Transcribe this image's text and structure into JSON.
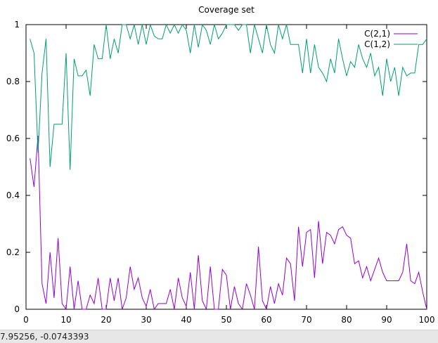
{
  "chart_data": {
    "type": "line",
    "title": "Coverage set",
    "xlabel": "",
    "ylabel": "",
    "xlim": [
      0,
      100
    ],
    "ylim": [
      0,
      1
    ],
    "xticks": [
      0,
      10,
      20,
      30,
      40,
      50,
      60,
      70,
      80,
      90,
      100
    ],
    "yticks": [
      0,
      0.2,
      0.4,
      0.6,
      0.8,
      1
    ],
    "grid": false,
    "legend_position": "top-right",
    "series": [
      {
        "name": "C(2,1)",
        "color": "#9400d3",
        "x": [
          1,
          2,
          3,
          4,
          5,
          6,
          7,
          8,
          9,
          10,
          11,
          12,
          13,
          14,
          15,
          16,
          17,
          18,
          19,
          20,
          21,
          22,
          23,
          24,
          25,
          26,
          27,
          28,
          29,
          30,
          31,
          32,
          33,
          34,
          35,
          36,
          37,
          38,
          39,
          40,
          41,
          42,
          43,
          44,
          45,
          46,
          47,
          48,
          49,
          50,
          51,
          52,
          53,
          54,
          55,
          56,
          57,
          58,
          59,
          60,
          61,
          62,
          63,
          64,
          65,
          66,
          67,
          68,
          69,
          70,
          71,
          72,
          73,
          74,
          75,
          76,
          77,
          78,
          79,
          80,
          81,
          82,
          83,
          84,
          85,
          86,
          87,
          88,
          89,
          90,
          91,
          92,
          93,
          94,
          95,
          96,
          97,
          98,
          99,
          100
        ],
        "values": [
          0.53,
          0.43,
          0.61,
          0.09,
          0.02,
          0.2,
          0.04,
          0.25,
          0.02,
          0.0,
          0.15,
          0.0,
          0.1,
          0.0,
          0.0,
          0.05,
          0.02,
          0.11,
          0.0,
          0.0,
          0.11,
          0.03,
          0.11,
          0.0,
          0.04,
          0.15,
          0.07,
          0.11,
          0.04,
          0.01,
          0.07,
          0.0,
          0.02,
          0.02,
          0.02,
          0.07,
          0.0,
          0.11,
          0.04,
          0.01,
          0.13,
          0.0,
          0.19,
          0.03,
          0.0,
          0.15,
          0.0,
          0.0,
          0.14,
          0.12,
          0.0,
          0.08,
          0.02,
          0.0,
          0.09,
          0.05,
          0.0,
          0.22,
          0.03,
          0.0,
          0.08,
          0.02,
          0.09,
          0.05,
          0.18,
          0.16,
          0.03,
          0.29,
          0.15,
          0.27,
          0.28,
          0.11,
          0.31,
          0.16,
          0.27,
          0.26,
          0.23,
          0.28,
          0.29,
          0.26,
          0.25,
          0.16,
          0.17,
          0.11,
          0.15,
          0.1,
          0.14,
          0.18,
          0.13,
          0.1,
          0.1,
          0.1,
          0.1,
          0.13,
          0.23,
          0.1,
          0.09,
          0.13,
          0.06,
          0.0
        ]
      },
      {
        "name": "C(1,2)",
        "color": "#009e73",
        "x": [
          1,
          2,
          3,
          4,
          5,
          6,
          7,
          8,
          9,
          10,
          11,
          12,
          13,
          14,
          15,
          16,
          17,
          18,
          19,
          20,
          21,
          22,
          23,
          24,
          25,
          26,
          27,
          28,
          29,
          30,
          31,
          32,
          33,
          34,
          35,
          36,
          37,
          38,
          39,
          40,
          41,
          42,
          43,
          44,
          45,
          46,
          47,
          48,
          49,
          50,
          51,
          52,
          53,
          54,
          55,
          56,
          57,
          58,
          59,
          60,
          61,
          62,
          63,
          64,
          65,
          66,
          67,
          68,
          69,
          70,
          71,
          72,
          73,
          74,
          75,
          76,
          77,
          78,
          79,
          80,
          81,
          82,
          83,
          84,
          85,
          86,
          87,
          88,
          89,
          90,
          91,
          92,
          93,
          94,
          95,
          96,
          97,
          98,
          99,
          100
        ],
        "values": [
          0.95,
          0.9,
          0.55,
          0.83,
          0.95,
          0.5,
          0.65,
          0.65,
          0.65,
          0.9,
          0.49,
          0.88,
          0.82,
          0.82,
          0.84,
          0.75,
          0.93,
          0.88,
          0.88,
          1.0,
          0.88,
          0.95,
          0.9,
          1.0,
          1.0,
          0.95,
          1.0,
          0.93,
          1.0,
          0.93,
          1.0,
          0.96,
          0.95,
          0.95,
          1.0,
          0.97,
          1.0,
          0.97,
          1.0,
          0.98,
          0.9,
          1.0,
          0.92,
          1.0,
          0.98,
          0.93,
          1.0,
          0.95,
          0.97,
          1.0,
          1.0,
          1.0,
          0.98,
          1.0,
          1.0,
          0.9,
          1.0,
          0.95,
          0.9,
          1.0,
          0.93,
          0.9,
          1.0,
          0.95,
          1.0,
          0.93,
          0.93,
          0.93,
          0.83,
          0.95,
          0.83,
          0.93,
          0.85,
          0.83,
          0.8,
          0.88,
          0.83,
          0.95,
          0.88,
          0.82,
          0.87,
          0.85,
          0.93,
          0.88,
          0.85,
          0.9,
          0.82,
          0.85,
          0.75,
          0.88,
          0.8,
          0.85,
          0.75,
          0.85,
          0.82,
          0.83,
          0.83,
          0.93,
          0.93,
          0.95
        ]
      }
    ]
  },
  "status": {
    "coordinates": "7.95256, -0.0743393"
  }
}
